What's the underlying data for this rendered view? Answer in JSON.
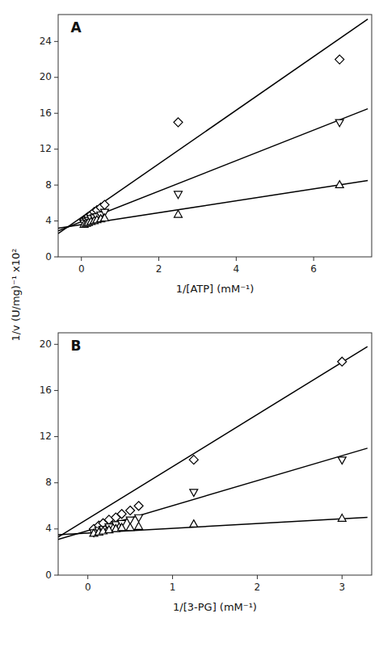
{
  "chart_data": [
    {
      "type": "scatter",
      "title": "A",
      "xlabel": "1/[ATP] (mM⁻¹)",
      "ylabel": "1/v (U/mg)⁻¹ x10²",
      "xlim": [
        -0.6,
        7.5
      ],
      "ylim": [
        0,
        27
      ],
      "xticks": [
        0,
        2,
        4,
        6
      ],
      "yticks": [
        0,
        4,
        8,
        12,
        16,
        20,
        24
      ],
      "grid": false,
      "series": [
        {
          "type": "line",
          "color": "black",
          "x": [
            -0.6,
            7.4
          ],
          "values": [
            2.6,
            26.5
          ]
        },
        {
          "type": "scatter",
          "marker": "diamond",
          "color": "black",
          "x": [
            0.07,
            0.13,
            0.18,
            0.25,
            0.33,
            0.4,
            0.5,
            0.6,
            2.5,
            6.67
          ],
          "values": [
            4.1,
            4.3,
            4.5,
            4.7,
            5.0,
            5.2,
            5.5,
            5.8,
            15.0,
            22.0
          ]
        },
        {
          "type": "line",
          "color": "black",
          "x": [
            -0.6,
            7.4
          ],
          "values": [
            2.9,
            16.5
          ]
        },
        {
          "type": "scatter",
          "marker": "triangle-down",
          "color": "black",
          "x": [
            0.07,
            0.13,
            0.18,
            0.25,
            0.33,
            0.4,
            0.5,
            0.6,
            2.5,
            6.67
          ],
          "values": [
            3.8,
            4.0,
            4.1,
            4.3,
            4.4,
            4.5,
            4.7,
            5.0,
            7.0,
            15.0
          ]
        },
        {
          "type": "line",
          "color": "black",
          "x": [
            -0.6,
            7.4
          ],
          "values": [
            3.2,
            8.5
          ]
        },
        {
          "type": "scatter",
          "marker": "triangle-up",
          "color": "black",
          "x": [
            0.07,
            0.13,
            0.18,
            0.25,
            0.33,
            0.4,
            0.5,
            0.6,
            2.5,
            6.67
          ],
          "values": [
            3.6,
            3.7,
            3.8,
            3.9,
            4.0,
            4.1,
            4.2,
            4.3,
            4.7,
            8.0
          ]
        }
      ]
    },
    {
      "type": "scatter",
      "title": "B",
      "xlabel": "1/[3-PG] (mM⁻¹)",
      "xlim": [
        -0.35,
        3.35
      ],
      "ylim": [
        0,
        21
      ],
      "xticks": [
        0,
        1,
        2,
        3
      ],
      "yticks": [
        0,
        4,
        8,
        12,
        16,
        20
      ],
      "grid": false,
      "series": [
        {
          "type": "line",
          "color": "black",
          "x": [
            -0.35,
            3.3
          ],
          "values": [
            3.3,
            19.8
          ]
        },
        {
          "type": "scatter",
          "marker": "diamond",
          "color": "black",
          "x": [
            0.07,
            0.13,
            0.18,
            0.25,
            0.33,
            0.4,
            0.5,
            0.6,
            1.25,
            3.0
          ],
          "values": [
            4.0,
            4.3,
            4.5,
            4.8,
            5.0,
            5.3,
            5.6,
            6.0,
            10.0,
            18.5
          ]
        },
        {
          "type": "line",
          "color": "black",
          "x": [
            -0.35,
            3.3
          ],
          "values": [
            3.1,
            11.0
          ]
        },
        {
          "type": "scatter",
          "marker": "triangle-down",
          "color": "black",
          "x": [
            0.07,
            0.13,
            0.18,
            0.25,
            0.33,
            0.4,
            0.5,
            0.6,
            1.25,
            3.0
          ],
          "values": [
            3.7,
            3.9,
            4.0,
            4.2,
            4.4,
            4.5,
            4.8,
            5.0,
            7.2,
            10.0
          ]
        },
        {
          "type": "line",
          "color": "black",
          "x": [
            -0.35,
            3.3
          ],
          "values": [
            3.5,
            5.0
          ]
        },
        {
          "type": "scatter",
          "marker": "triangle-up",
          "color": "black",
          "x": [
            0.07,
            0.13,
            0.18,
            0.25,
            0.33,
            0.4,
            0.5,
            0.6,
            1.25,
            3.0
          ],
          "values": [
            3.6,
            3.7,
            3.8,
            3.9,
            4.0,
            4.1,
            4.1,
            4.2,
            4.4,
            4.9
          ]
        }
      ]
    }
  ]
}
